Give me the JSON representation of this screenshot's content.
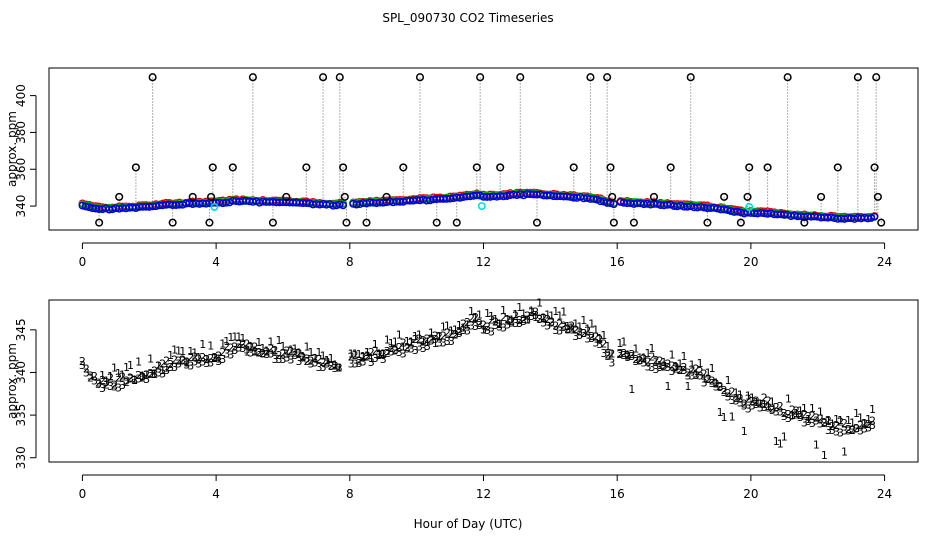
{
  "title": "SPL_090730  CO2 Timeseries",
  "xlabel": "Hour of Day (UTC)",
  "colors": {
    "series1": "#e00000",
    "series2": "#00b000",
    "series3": "#0000dd",
    "cal": "#00dddd",
    "spike": "#000000",
    "drop": "#999999"
  },
  "chart_data": [
    {
      "type": "scatter",
      "title": "SPL_090730  CO2 Timeseries",
      "xlabel": "",
      "ylabel": "approx. ppm",
      "xlim": [
        -1,
        25
      ],
      "ylim": [
        327,
        415
      ],
      "xticks": [
        0,
        4,
        8,
        12,
        16,
        20,
        24
      ],
      "yticks": [
        340,
        360,
        380,
        400
      ],
      "grid": false,
      "baseline_knots": {
        "x": [
          0,
          0.3,
          0.6,
          1,
          1.5,
          2,
          2.5,
          3,
          3.5,
          4,
          4.5,
          5,
          5.5,
          6,
          6.5,
          7,
          7.5,
          7.8,
          8,
          8.5,
          9,
          9.5,
          10,
          10.5,
          11,
          11.5,
          11.8,
          12,
          12.5,
          13,
          13.5,
          14,
          14.5,
          15,
          15.5,
          15.9,
          16,
          16.5,
          17,
          17.5,
          18,
          18.5,
          19,
          19.5,
          19.9,
          20,
          20.5,
          21,
          21.5,
          22,
          22.5,
          23,
          23.5,
          23.8
        ],
        "y": [
          340.5,
          339,
          338.5,
          338.5,
          339,
          339.5,
          340.5,
          341,
          341.5,
          341.5,
          342.5,
          342.5,
          342,
          342,
          341.5,
          341,
          340.5,
          340.5,
          341,
          341.5,
          342,
          342.5,
          343,
          343.5,
          344,
          345,
          346,
          345,
          345.5,
          346,
          346.5,
          345.5,
          345,
          344.5,
          343,
          341,
          342,
          341.5,
          341,
          340.5,
          340,
          339.5,
          338.5,
          337,
          336,
          336.5,
          336,
          335,
          334.5,
          334,
          333.5,
          333,
          333.5,
          334
        ]
      },
      "spikes": {
        "x": [
          0.5,
          1.1,
          1.6,
          2.1,
          2.7,
          3.3,
          3.8,
          3.85,
          3.9,
          4.5,
          5.1,
          5.7,
          6.1,
          6.7,
          7.2,
          7.7,
          7.8,
          7.85,
          7.9,
          8.5,
          9.1,
          9.6,
          10.1,
          10.6,
          11.2,
          11.8,
          11.9,
          12.5,
          13.1,
          13.6,
          14.7,
          15.2,
          15.7,
          15.8,
          15.85,
          15.9,
          16.5,
          17.1,
          17.6,
          18.2,
          18.7,
          19.2,
          19.7,
          19.9,
          19.95,
          20.5,
          21.1,
          21.6,
          22.1,
          22.6,
          23.2,
          23.7,
          23.75,
          23.8,
          23.9
        ],
        "y": [
          331,
          345,
          361,
          410,
          331,
          345,
          331,
          345,
          361,
          361,
          410,
          331,
          345,
          361,
          410,
          410,
          361,
          345,
          331,
          331,
          345,
          361,
          410,
          331,
          331,
          361,
          410,
          361,
          410,
          331,
          361,
          410,
          410,
          361,
          345,
          331,
          331,
          345,
          361,
          410,
          331,
          345,
          331,
          345,
          361,
          361,
          410,
          331,
          345,
          361,
          410,
          361,
          410,
          345,
          331
        ]
      },
      "calibration_points": {
        "x": [
          3.95,
          11.95,
          19.95
        ],
        "y": [
          339.5,
          340,
          339.5
        ]
      }
    },
    {
      "type": "scatter",
      "title": "",
      "xlabel": "Hour of Day (UTC)",
      "ylabel": "approx. ppm",
      "xlim": [
        -1,
        25
      ],
      "ylim": [
        329.5,
        348.5
      ],
      "xticks": [
        0,
        4,
        8,
        12,
        16,
        20,
        24
      ],
      "yticks": [
        330,
        335,
        340,
        345
      ],
      "grid": false,
      "series": [
        {
          "name": "1",
          "marker": "1",
          "offset": 1.0
        },
        {
          "name": "2",
          "marker": "2",
          "offset": 0.5
        },
        {
          "name": "3",
          "marker": "3",
          "offset": 0.0
        }
      ]
    }
  ]
}
